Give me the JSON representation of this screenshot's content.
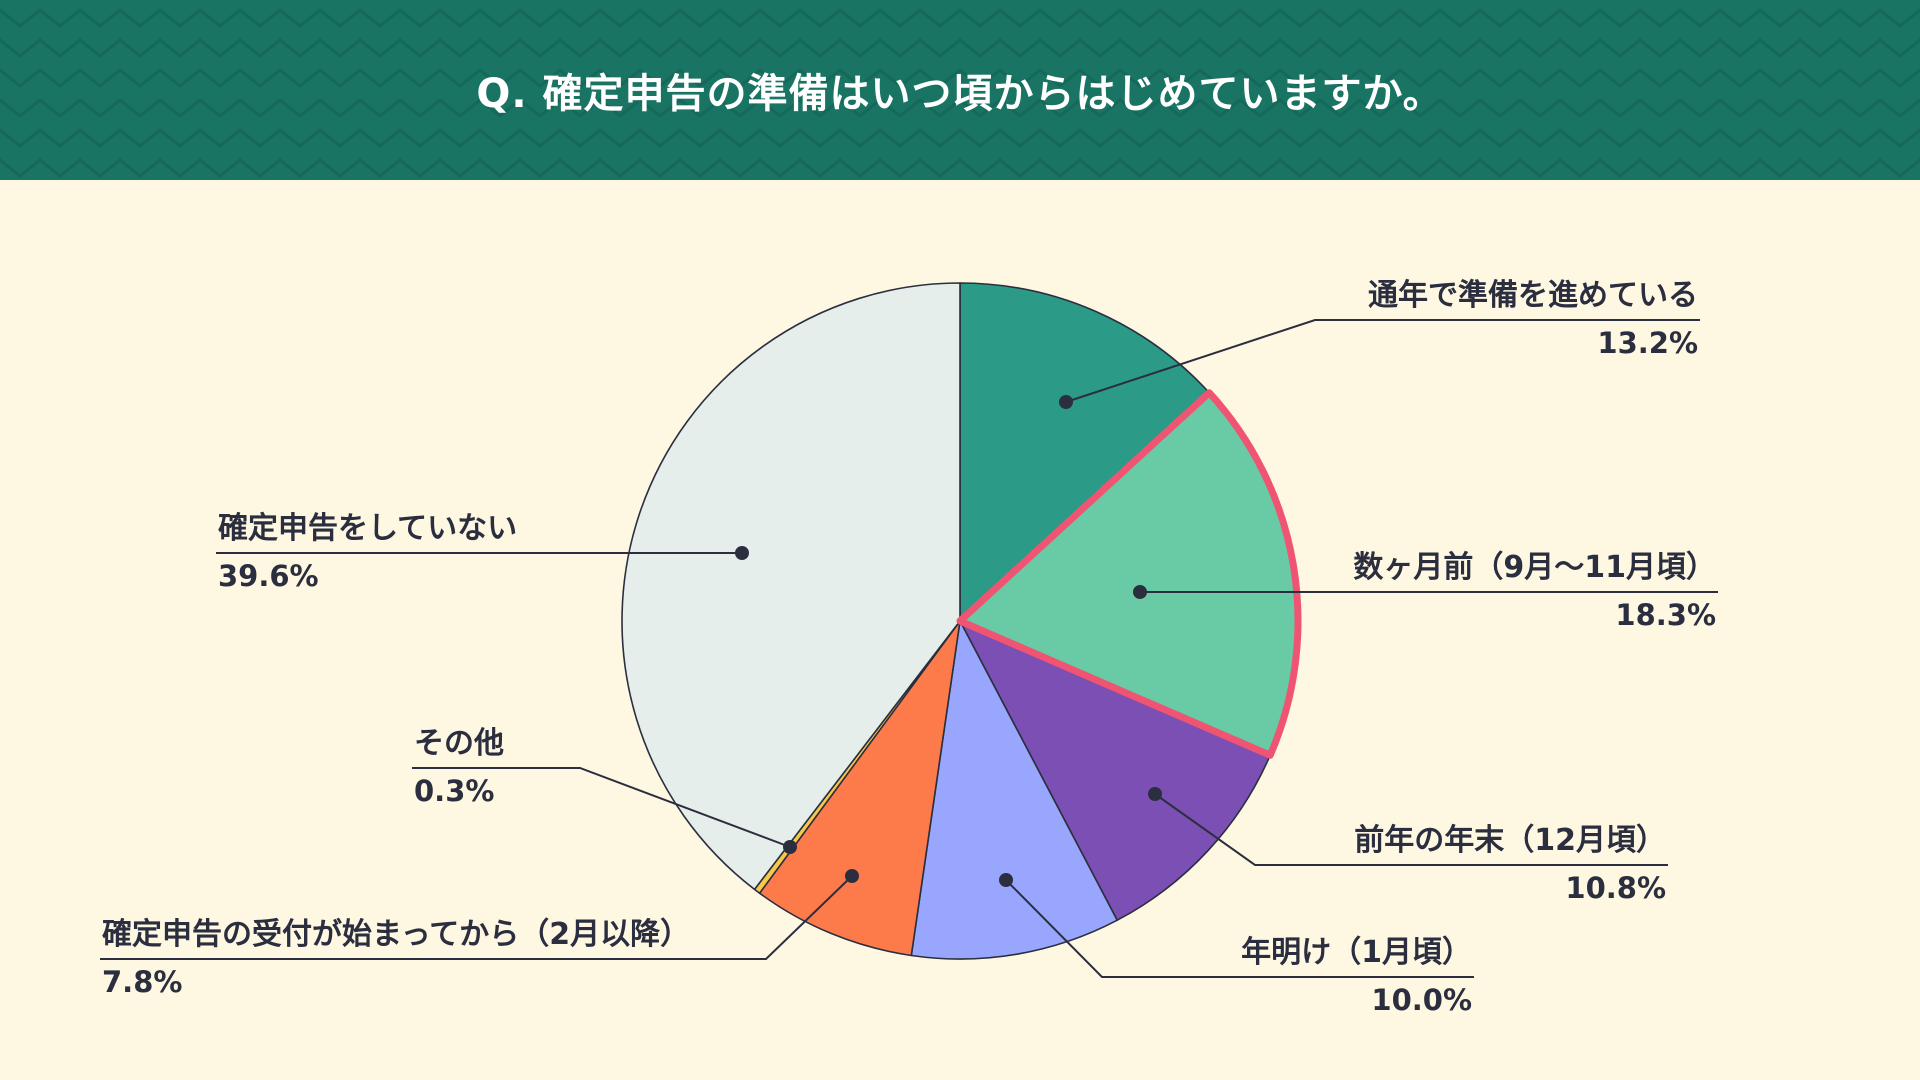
{
  "title": "Q. 確定申告の準備はいつ頃からはじめていますか。",
  "colors": {
    "header": "#1a7463",
    "background": "#fef8e2",
    "text": "#2b2e3f",
    "highlight_stroke": "#ef5573"
  },
  "chart_data": {
    "type": "pie",
    "start_angle_deg": 0,
    "direction": "clockwise",
    "highlighted": "数ヶ月前（9月〜11月頃）",
    "slices": [
      {
        "label": "通年で準備を進めている",
        "value": 13.2,
        "value_label": "13.2%",
        "color": "#2b9a87"
      },
      {
        "label": "数ヶ月前（9月〜11月頃）",
        "value": 18.3,
        "value_label": "18.3%",
        "color": "#69cba5"
      },
      {
        "label": "前年の年末（12月頃）",
        "value": 10.8,
        "value_label": "10.8%",
        "color": "#7b4fb3"
      },
      {
        "label": "年明け（1月頃）",
        "value": 10.0,
        "value_label": "10.0%",
        "color": "#98a6fd"
      },
      {
        "label": "確定申告の受付が始まってから（2月以降）",
        "value": 7.8,
        "value_label": "7.8%",
        "color": "#fd7b4b"
      },
      {
        "label": "その他",
        "value": 0.3,
        "value_label": "0.3%",
        "color": "#f7c948"
      },
      {
        "label": "確定申告をしていない",
        "value": 39.6,
        "value_label": "39.6%",
        "color": "#e5eeea"
      }
    ]
  }
}
